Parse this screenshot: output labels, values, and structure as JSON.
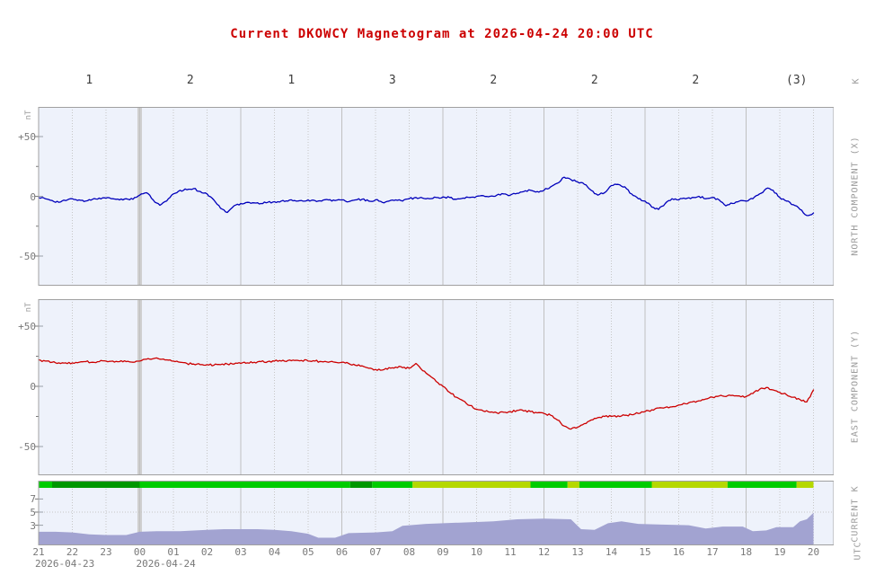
{
  "title": "Current DKOWCY Magnetogram at 2026-04-24 20:00 UTC",
  "k_row": {
    "axis_label": "K",
    "values": [
      "1",
      "2",
      "1",
      "3",
      "2",
      "2",
      "2",
      "(3)"
    ]
  },
  "x_axis": {
    "hours": [
      "21",
      "22",
      "23",
      "00",
      "01",
      "02",
      "03",
      "04",
      "05",
      "06",
      "07",
      "08",
      "09",
      "10",
      "11",
      "12",
      "13",
      "14",
      "15",
      "16",
      "17",
      "18",
      "19",
      "20"
    ],
    "dates": [
      {
        "label": "2026-04-23",
        "under_hour": "21"
      },
      {
        "label": "2026-04-24",
        "under_hour": "00"
      }
    ],
    "unit_label": "UTC"
  },
  "colors": {
    "title": "#cc0000",
    "north_line": "#0000bb",
    "east_line": "#cc0000",
    "k_area": "#a2a3d1",
    "green": "#00cc00",
    "dark_green": "#009700",
    "yellow": "#b5d800",
    "panel_bg": "#eef2fb",
    "panel_border": "#a0a0a0",
    "grid_dotted": "#c6c6c6",
    "grid_solid": "#c0c0c0",
    "midnight_band": "#cfcfcf",
    "text": "#787878",
    "k_values_text": "#3c3c3c",
    "side_label_text": "#9a9a9a"
  },
  "chart_data": [
    {
      "type": "line",
      "id": "north",
      "right_label": "NORTH COMPONENT (X)",
      "y_unit": "nT",
      "ytick_labels": [
        "+50",
        "0",
        "-50"
      ],
      "ytick_values": [
        50,
        0,
        -50
      ],
      "ylim": [
        -74,
        74
      ],
      "x_start": "21:00",
      "x_step_hours": 0.2,
      "values": [
        -1,
        -2,
        -3.5,
        -5,
        -3.5,
        -2,
        -3,
        -4,
        -2.5,
        -1.5,
        -1.5,
        -2,
        -3,
        -2,
        -2.5,
        1,
        3,
        -3,
        -7.5,
        -4,
        2,
        5,
        5.5,
        6.5,
        4,
        2,
        -3,
        -10,
        -13.5,
        -8,
        -6,
        -5,
        -5.5,
        -6,
        -5,
        -4.5,
        -4,
        -4,
        -3.5,
        -3.5,
        -3,
        -3.5,
        -4,
        -3,
        -3.5,
        -3,
        -4.5,
        -3,
        -2.5,
        -4,
        -3,
        -5,
        -4,
        -3,
        -4,
        -2,
        -1,
        -1.5,
        -2,
        -1,
        -0.5,
        -1,
        -2.5,
        -1.5,
        -1,
        0,
        0.5,
        0,
        1,
        2,
        1,
        2.5,
        4,
        5,
        4,
        5,
        8,
        11,
        16,
        14,
        12,
        10,
        5,
        1,
        3,
        9,
        10,
        8,
        2,
        -2,
        -4,
        -9,
        -11,
        -6,
        -2,
        -3,
        -2,
        -1,
        0,
        -2,
        -1,
        -3,
        -8,
        -6,
        -4,
        -4,
        -2,
        2,
        6.5,
        5,
        -1,
        -4,
        -7,
        -11,
        -16,
        -14
      ]
    },
    {
      "type": "line",
      "id": "east",
      "right_label": "EAST COMPONENT (Y)",
      "y_unit": "nT",
      "ytick_labels": [
        "+50",
        "0",
        "-50"
      ],
      "ytick_values": [
        50,
        0,
        -50
      ],
      "ylim": [
        -74,
        74
      ],
      "x_start": "21:00",
      "x_step_hours": 0.2,
      "values": [
        22,
        21,
        20,
        19.5,
        19.5,
        19.5,
        20,
        20.5,
        20,
        20.5,
        21,
        21,
        20.5,
        20.5,
        20,
        21,
        22.5,
        23,
        22.5,
        22,
        21,
        20,
        19,
        18.5,
        18,
        18,
        17.5,
        18,
        18.5,
        18.5,
        19,
        19.5,
        20,
        20.5,
        20.5,
        21,
        21,
        21.5,
        21.5,
        21.5,
        21,
        21,
        20.5,
        20,
        20,
        20,
        19,
        17.5,
        17,
        15,
        14,
        13.5,
        15.5,
        16,
        15.5,
        15,
        19,
        13,
        9,
        4,
        0,
        -5,
        -9,
        -12,
        -16,
        -19,
        -20.5,
        -21.5,
        -22,
        -21.5,
        -21,
        -20,
        -20.5,
        -21,
        -22,
        -22.5,
        -24,
        -28,
        -33,
        -35.5,
        -34,
        -31,
        -28,
        -26,
        -25,
        -25,
        -24.5,
        -24,
        -23.5,
        -22.5,
        -21,
        -19.5,
        -18,
        -17.5,
        -17,
        -15.5,
        -14.5,
        -13,
        -12,
        -10.5,
        -9,
        -8,
        -8.5,
        -7.5,
        -8,
        -8.5,
        -6,
        -2.5,
        -1,
        -3,
        -5,
        -7,
        -9,
        -11,
        -13,
        -3
      ]
    },
    {
      "type": "area",
      "id": "current_k",
      "right_label": "CURRENT K",
      "ytick_labels": [
        "7",
        "5",
        "3"
      ],
      "ytick_values": [
        7,
        5,
        3
      ],
      "ylim": [
        0,
        8.8
      ],
      "points": [
        [
          0,
          2
        ],
        [
          0.5,
          2
        ],
        [
          1,
          1.9
        ],
        [
          1.5,
          1.6
        ],
        [
          2,
          1.5
        ],
        [
          2.6,
          1.5
        ],
        [
          3,
          2
        ],
        [
          3.5,
          2.1
        ],
        [
          4.2,
          2.1
        ],
        [
          5,
          2.3
        ],
        [
          5.5,
          2.4
        ],
        [
          6.5,
          2.4
        ],
        [
          7,
          2.3
        ],
        [
          7.5,
          2.1
        ],
        [
          8,
          1.7
        ],
        [
          8.3,
          1.1
        ],
        [
          8.8,
          1.1
        ],
        [
          9.2,
          1.8
        ],
        [
          10,
          1.9
        ],
        [
          10.5,
          2.1
        ],
        [
          10.8,
          2.9
        ],
        [
          11.5,
          3.2
        ],
        [
          12.5,
          3.4
        ],
        [
          13.5,
          3.6
        ],
        [
          14.2,
          3.9
        ],
        [
          15,
          4
        ],
        [
          15.8,
          3.9
        ],
        [
          16.1,
          2.4
        ],
        [
          16.5,
          2.3
        ],
        [
          16.9,
          3.3
        ],
        [
          17.3,
          3.6
        ],
        [
          17.8,
          3.2
        ],
        [
          18.5,
          3.1
        ],
        [
          19.3,
          3
        ],
        [
          19.8,
          2.5
        ],
        [
          20.3,
          2.8
        ],
        [
          20.9,
          2.8
        ],
        [
          21.2,
          2.1
        ],
        [
          21.6,
          2.2
        ],
        [
          21.9,
          2.7
        ],
        [
          22.4,
          2.7
        ],
        [
          22.6,
          3.6
        ],
        [
          22.8,
          3.9
        ],
        [
          23,
          4.9
        ]
      ],
      "strip_segments": [
        {
          "from": 0,
          "to": 0.4,
          "color": "green"
        },
        {
          "from": 0.4,
          "to": 3.0,
          "color": "dark_green"
        },
        {
          "from": 3.0,
          "to": 9.25,
          "color": "green"
        },
        {
          "from": 9.25,
          "to": 9.9,
          "color": "dark_green"
        },
        {
          "from": 9.9,
          "to": 11.1,
          "color": "green"
        },
        {
          "from": 11.1,
          "to": 14.6,
          "color": "yellow"
        },
        {
          "from": 14.6,
          "to": 15.7,
          "color": "green"
        },
        {
          "from": 15.7,
          "to": 16.05,
          "color": "yellow"
        },
        {
          "from": 16.05,
          "to": 18.2,
          "color": "green"
        },
        {
          "from": 18.2,
          "to": 20.45,
          "color": "yellow"
        },
        {
          "from": 20.45,
          "to": 22.5,
          "color": "green"
        },
        {
          "from": 22.5,
          "to": 23.0,
          "color": "yellow"
        }
      ]
    }
  ]
}
